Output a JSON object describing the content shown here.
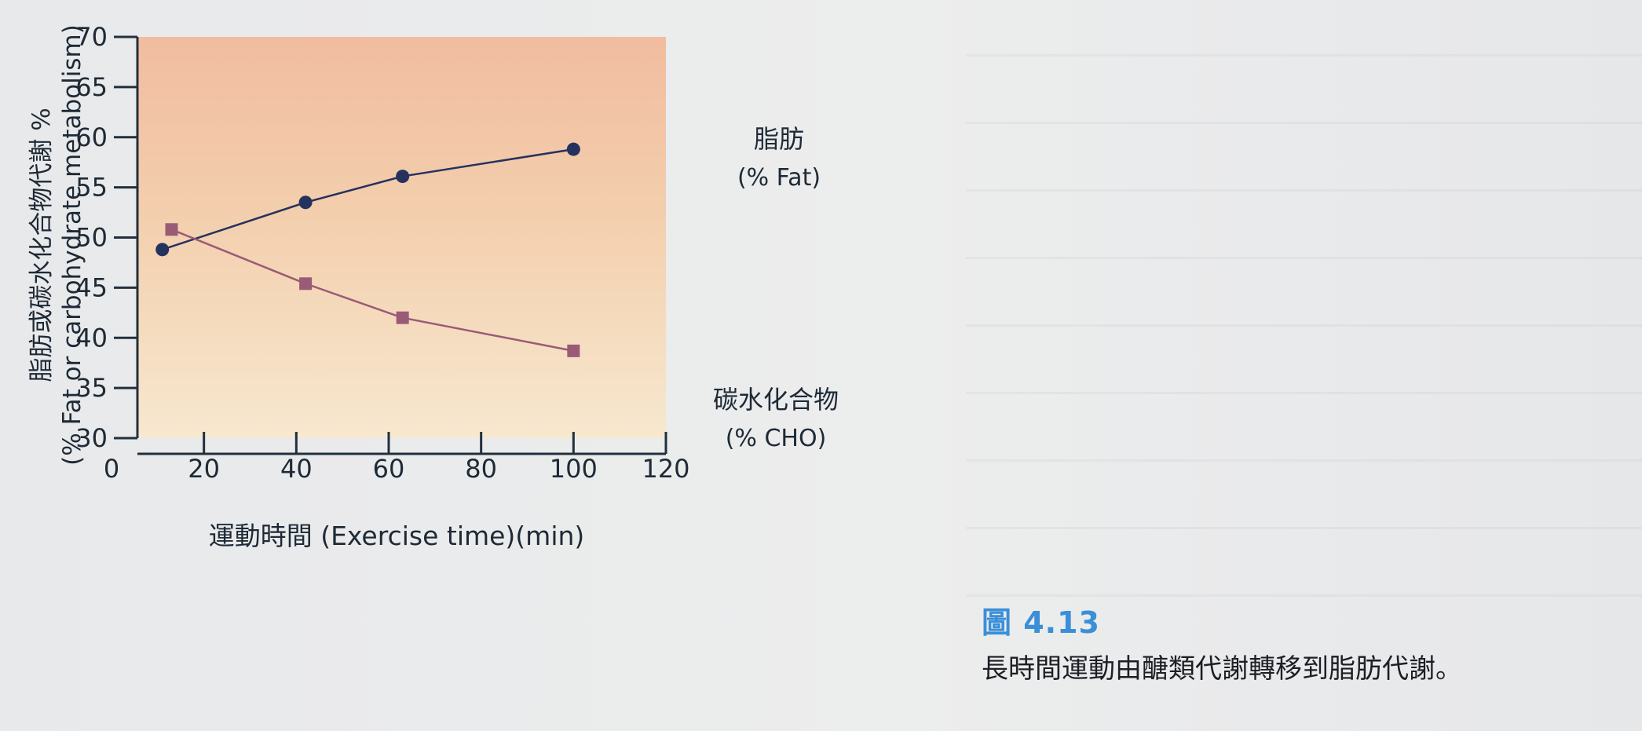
{
  "figure": {
    "label": "圖 4.13",
    "caption": "長時間運動由醣類代謝轉移到脂肪代謝。"
  },
  "chart_data": {
    "type": "line",
    "xlabel": "運動時間 (Exercise time)(min)",
    "ylabel_line1": "脂肪或碳水化合物代謝 %",
    "ylabel_line2": "(% Fat or carbohydrate metabolism)",
    "xlim": [
      0,
      120
    ],
    "ylim": [
      30,
      70
    ],
    "x_ticks": [
      0,
      20,
      40,
      60,
      80,
      100,
      120
    ],
    "y_ticks": [
      30,
      35,
      40,
      45,
      50,
      55,
      60,
      65,
      70
    ],
    "grid": false,
    "series": [
      {
        "name": "脂肪",
        "unit_label": "(% Fat)",
        "marker": "circle",
        "color": "#26325e",
        "x": [
          11,
          42,
          63,
          100
        ],
        "y": [
          48.8,
          53.5,
          56.1,
          58.8
        ]
      },
      {
        "name": "碳水化合物",
        "unit_label": "(% CHO)",
        "marker": "square",
        "color": "#9a5b76",
        "x": [
          13,
          42,
          63,
          100
        ],
        "y": [
          50.8,
          45.4,
          42.0,
          38.7
        ]
      }
    ]
  }
}
